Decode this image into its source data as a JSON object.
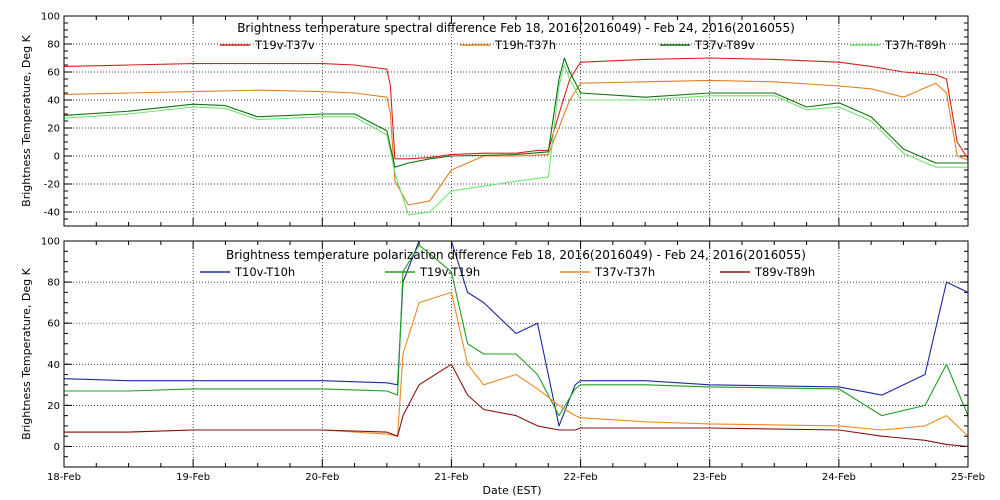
{
  "xlabel": "Date (EST)",
  "chart_data": [
    {
      "type": "line",
      "title": "Brightness temperature spectral difference     Feb 18, 2016(2016049) - Feb 24, 2016(2016055)",
      "ylabel": "Brightness Temperature, Deg K",
      "xlim": [
        "2016-02-18",
        "2016-02-25"
      ],
      "ylim": [
        -50,
        100
      ],
      "yticks": [
        -40,
        -20,
        0,
        20,
        40,
        60,
        80,
        100
      ],
      "xtick_labels": [
        "18-Feb",
        "19-Feb",
        "20-Feb",
        "21-Feb",
        "22-Feb",
        "23-Feb",
        "24-Feb",
        "25-Feb"
      ],
      "grid": true,
      "legend_position": "top",
      "series": [
        {
          "name": "T19v-T37v",
          "color": "#d62020",
          "points": [
            [
              "2016-02-18 00:00",
              64
            ],
            [
              "2016-02-18 12:00",
              65
            ],
            [
              "2016-02-19 00:00",
              66
            ],
            [
              "2016-02-19 12:00",
              66
            ],
            [
              "2016-02-20 00:00",
              66
            ],
            [
              "2016-02-20 06:00",
              65
            ],
            [
              "2016-02-20 12:00",
              62
            ],
            [
              "2016-02-20 12:40",
              50
            ],
            [
              "2016-02-20 13:30",
              -2
            ],
            [
              "2016-02-20 16:00",
              -2
            ],
            [
              "2016-02-20 20:00",
              -1
            ],
            [
              "2016-02-21 00:00",
              1
            ],
            [
              "2016-02-21 06:00",
              2
            ],
            [
              "2016-02-21 12:00",
              2
            ],
            [
              "2016-02-21 16:00",
              4
            ],
            [
              "2016-02-21 18:00",
              4
            ],
            [
              "2016-02-21 20:00",
              30
            ],
            [
              "2016-02-21 22:00",
              55
            ],
            [
              "2016-02-22 00:00",
              67
            ],
            [
              "2016-02-22 12:00",
              69
            ],
            [
              "2016-02-23 00:00",
              70
            ],
            [
              "2016-02-23 12:00",
              69
            ],
            [
              "2016-02-24 00:00",
              67
            ],
            [
              "2016-02-24 06:00",
              64
            ],
            [
              "2016-02-24 12:00",
              60
            ],
            [
              "2016-02-24 18:00",
              58
            ],
            [
              "2016-02-24 20:00",
              55
            ],
            [
              "2016-02-24 22:00",
              10
            ],
            [
              "2016-02-25 00:00",
              -2
            ]
          ]
        },
        {
          "name": "T19h-T37h",
          "color": "#e08020",
          "points": [
            [
              "2016-02-18 00:00",
              44
            ],
            [
              "2016-02-18 12:00",
              45
            ],
            [
              "2016-02-19 00:00",
              46
            ],
            [
              "2016-02-19 12:00",
              47
            ],
            [
              "2016-02-20 00:00",
              46
            ],
            [
              "2016-02-20 06:00",
              45
            ],
            [
              "2016-02-20 12:00",
              42
            ],
            [
              "2016-02-20 12:40",
              30
            ],
            [
              "2016-02-20 13:30",
              -18
            ],
            [
              "2016-02-20 16:00",
              -35
            ],
            [
              "2016-02-20 20:00",
              -32
            ],
            [
              "2016-02-21 00:00",
              -10
            ],
            [
              "2016-02-21 06:00",
              0
            ],
            [
              "2016-02-21 12:00",
              0
            ],
            [
              "2016-02-21 18:00",
              1
            ],
            [
              "2016-02-21 22:00",
              40
            ],
            [
              "2016-02-22 00:00",
              52
            ],
            [
              "2016-02-22 12:00",
              53
            ],
            [
              "2016-02-23 00:00",
              54
            ],
            [
              "2016-02-23 12:00",
              53
            ],
            [
              "2016-02-24 00:00",
              50
            ],
            [
              "2016-02-24 06:00",
              48
            ],
            [
              "2016-02-24 12:00",
              42
            ],
            [
              "2016-02-24 18:00",
              52
            ],
            [
              "2016-02-24 20:00",
              45
            ],
            [
              "2016-02-24 22:00",
              0
            ],
            [
              "2016-02-25 00:00",
              -3
            ]
          ]
        },
        {
          "name": "T37v-T89v",
          "color": "#107010",
          "points": [
            [
              "2016-02-18 00:00",
              29
            ],
            [
              "2016-02-18 12:00",
              32
            ],
            [
              "2016-02-19 00:00",
              37
            ],
            [
              "2016-02-19 06:00",
              36
            ],
            [
              "2016-02-19 12:00",
              28
            ],
            [
              "2016-02-20 00:00",
              30
            ],
            [
              "2016-02-20 06:00",
              30
            ],
            [
              "2016-02-20 12:00",
              18
            ],
            [
              "2016-02-20 13:30",
              -8
            ],
            [
              "2016-02-20 16:00",
              -5
            ],
            [
              "2016-02-20 20:00",
              -2
            ],
            [
              "2016-02-21 00:00",
              0
            ],
            [
              "2016-02-21 12:00",
              1
            ],
            [
              "2016-02-21 18:00",
              3
            ],
            [
              "2016-02-21 20:00",
              55
            ],
            [
              "2016-02-21 21:00",
              70
            ],
            [
              "2016-02-21 22:00",
              60
            ],
            [
              "2016-02-22 00:00",
              45
            ],
            [
              "2016-02-22 12:00",
              42
            ],
            [
              "2016-02-23 00:00",
              45
            ],
            [
              "2016-02-23 12:00",
              45
            ],
            [
              "2016-02-23 18:00",
              35
            ],
            [
              "2016-02-24 00:00",
              38
            ],
            [
              "2016-02-24 06:00",
              28
            ],
            [
              "2016-02-24 12:00",
              5
            ],
            [
              "2016-02-24 18:00",
              -5
            ],
            [
              "2016-02-25 00:00",
              -5
            ]
          ]
        },
        {
          "name": "T37h-T89h",
          "color": "#70e070",
          "points": [
            [
              "2016-02-18 00:00",
              27
            ],
            [
              "2016-02-18 12:00",
              30
            ],
            [
              "2016-02-19 00:00",
              35
            ],
            [
              "2016-02-19 06:00",
              34
            ],
            [
              "2016-02-19 12:00",
              26
            ],
            [
              "2016-02-20 00:00",
              28
            ],
            [
              "2016-02-20 06:00",
              28
            ],
            [
              "2016-02-20 12:00",
              15
            ],
            [
              "2016-02-20 13:30",
              -12
            ],
            [
              "2016-02-20 16:00",
              -42
            ],
            [
              "2016-02-20 20:00",
              -40
            ],
            [
              "2016-02-21 00:00",
              -25
            ],
            [
              "2016-02-21 12:00",
              -18
            ],
            [
              "2016-02-21 18:00",
              -15
            ],
            [
              "2016-02-21 20:00",
              50
            ],
            [
              "2016-02-21 21:00",
              65
            ],
            [
              "2016-02-21 22:00",
              55
            ],
            [
              "2016-02-22 00:00",
              40
            ],
            [
              "2016-02-22 12:00",
              40
            ],
            [
              "2016-02-23 00:00",
              43
            ],
            [
              "2016-02-23 12:00",
              43
            ],
            [
              "2016-02-23 18:00",
              33
            ],
            [
              "2016-02-24 00:00",
              35
            ],
            [
              "2016-02-24 06:00",
              25
            ],
            [
              "2016-02-24 12:00",
              2
            ],
            [
              "2016-02-24 18:00",
              -8
            ],
            [
              "2016-02-25 00:00",
              -8
            ]
          ]
        }
      ]
    },
    {
      "type": "line",
      "title": "Brightness temperature polarization difference     Feb 18, 2016(2016049) - Feb 24, 2016(2016055)",
      "ylabel": "Brightness Temperature, Deg K",
      "xlim": [
        "2016-02-18",
        "2016-02-25"
      ],
      "ylim": [
        -10,
        100
      ],
      "yticks": [
        0,
        20,
        40,
        60,
        80,
        100
      ],
      "xtick_labels": [
        "18-Feb",
        "19-Feb",
        "20-Feb",
        "21-Feb",
        "22-Feb",
        "23-Feb",
        "24-Feb",
        "25-Feb"
      ],
      "grid": true,
      "legend_position": "top",
      "series": [
        {
          "name": "T10v-T10h",
          "color": "#1a2aa0",
          "points": [
            [
              "2016-02-18 00:00",
              33
            ],
            [
              "2016-02-18 12:00",
              32
            ],
            [
              "2016-02-19 00:00",
              32
            ],
            [
              "2016-02-20 00:00",
              32
            ],
            [
              "2016-02-20 12:00",
              31
            ],
            [
              "2016-02-20 14:00",
              30
            ],
            [
              "2016-02-20 15:00",
              80
            ],
            [
              "2016-02-20 18:00",
              100
            ],
            [
              "2016-02-21 00:00",
              100
            ],
            [
              "2016-02-21 03:00",
              75
            ],
            [
              "2016-02-21 06:00",
              70
            ],
            [
              "2016-02-21 12:00",
              55
            ],
            [
              "2016-02-21 16:00",
              60
            ],
            [
              "2016-02-21 20:00",
              10
            ],
            [
              "2016-02-21 23:00",
              30
            ],
            [
              "2016-02-22 00:00",
              32
            ],
            [
              "2016-02-22 12:00",
              32
            ],
            [
              "2016-02-23 00:00",
              30
            ],
            [
              "2016-02-24 00:00",
              29
            ],
            [
              "2016-02-24 08:00",
              25
            ],
            [
              "2016-02-24 16:00",
              35
            ],
            [
              "2016-02-24 20:00",
              80
            ],
            [
              "2016-02-25 00:00",
              75
            ]
          ]
        },
        {
          "name": "T19v-T19h",
          "color": "#20a020",
          "points": [
            [
              "2016-02-18 00:00",
              27
            ],
            [
              "2016-02-18 12:00",
              27
            ],
            [
              "2016-02-19 00:00",
              28
            ],
            [
              "2016-02-20 00:00",
              28
            ],
            [
              "2016-02-20 12:00",
              27
            ],
            [
              "2016-02-20 14:00",
              25
            ],
            [
              "2016-02-20 15:00",
              85
            ],
            [
              "2016-02-20 18:00",
              98
            ],
            [
              "2016-02-21 00:00",
              85
            ],
            [
              "2016-02-21 03:00",
              50
            ],
            [
              "2016-02-21 06:00",
              45
            ],
            [
              "2016-02-21 12:00",
              45
            ],
            [
              "2016-02-21 16:00",
              35
            ],
            [
              "2016-02-21 20:00",
              15
            ],
            [
              "2016-02-21 23:00",
              28
            ],
            [
              "2016-02-22 00:00",
              30
            ],
            [
              "2016-02-22 12:00",
              30
            ],
            [
              "2016-02-23 00:00",
              29
            ],
            [
              "2016-02-24 00:00",
              28
            ],
            [
              "2016-02-24 08:00",
              15
            ],
            [
              "2016-02-24 16:00",
              20
            ],
            [
              "2016-02-24 20:00",
              40
            ],
            [
              "2016-02-25 00:00",
              15
            ]
          ]
        },
        {
          "name": "T37v-T37h",
          "color": "#ee8a20",
          "points": [
            [
              "2016-02-18 00:00",
              7
            ],
            [
              "2016-02-18 12:00",
              7
            ],
            [
              "2016-02-19 00:00",
              8
            ],
            [
              "2016-02-20 00:00",
              8
            ],
            [
              "2016-02-20 12:00",
              6
            ],
            [
              "2016-02-20 14:00",
              5
            ],
            [
              "2016-02-20 15:00",
              45
            ],
            [
              "2016-02-20 18:00",
              70
            ],
            [
              "2016-02-21 00:00",
              75
            ],
            [
              "2016-02-21 03:00",
              40
            ],
            [
              "2016-02-21 06:00",
              30
            ],
            [
              "2016-02-21 12:00",
              35
            ],
            [
              "2016-02-21 16:00",
              28
            ],
            [
              "2016-02-21 20:00",
              20
            ],
            [
              "2016-02-21 23:00",
              15
            ],
            [
              "2016-02-22 00:00",
              14
            ],
            [
              "2016-02-22 12:00",
              12
            ],
            [
              "2016-02-23 00:00",
              11
            ],
            [
              "2016-02-24 00:00",
              10
            ],
            [
              "2016-02-24 08:00",
              8
            ],
            [
              "2016-02-24 16:00",
              10
            ],
            [
              "2016-02-24 20:00",
              15
            ],
            [
              "2016-02-25 00:00",
              5
            ]
          ]
        },
        {
          "name": "T89v-T89h",
          "color": "#8a1010",
          "points": [
            [
              "2016-02-18 00:00",
              7
            ],
            [
              "2016-02-18 12:00",
              7
            ],
            [
              "2016-02-19 00:00",
              8
            ],
            [
              "2016-02-20 00:00",
              8
            ],
            [
              "2016-02-20 12:00",
              7
            ],
            [
              "2016-02-20 14:00",
              5
            ],
            [
              "2016-02-20 15:00",
              15
            ],
            [
              "2016-02-20 18:00",
              30
            ],
            [
              "2016-02-21 00:00",
              40
            ],
            [
              "2016-02-21 03:00",
              25
            ],
            [
              "2016-02-21 06:00",
              18
            ],
            [
              "2016-02-21 12:00",
              15
            ],
            [
              "2016-02-21 16:00",
              10
            ],
            [
              "2016-02-21 20:00",
              8
            ],
            [
              "2016-02-21 23:00",
              8
            ],
            [
              "2016-02-22 00:00",
              9
            ],
            [
              "2016-02-22 12:00",
              9
            ],
            [
              "2016-02-23 00:00",
              9
            ],
            [
              "2016-02-24 00:00",
              8
            ],
            [
              "2016-02-24 08:00",
              5
            ],
            [
              "2016-02-24 16:00",
              3
            ],
            [
              "2016-02-24 20:00",
              1
            ],
            [
              "2016-02-25 00:00",
              0
            ]
          ]
        }
      ]
    }
  ]
}
